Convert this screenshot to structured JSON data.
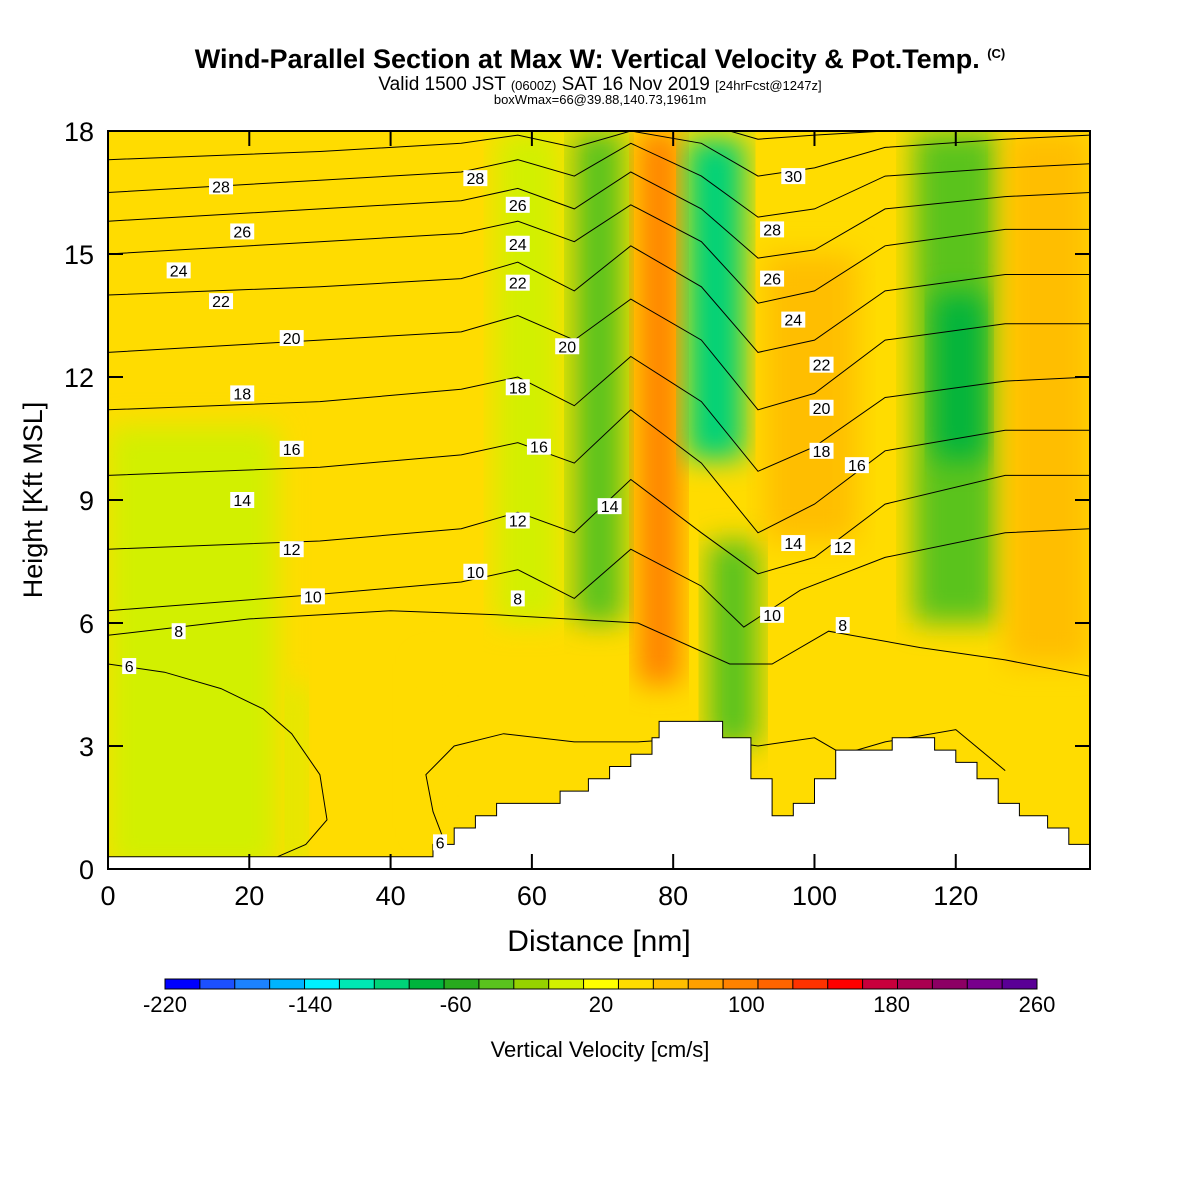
{
  "header": {
    "title": "Wind-Parallel Section at Max W: Vertical Velocity & Pot.Temp.",
    "copyright_mark": "(C)",
    "subtitle_a": "Valid 1500 JST",
    "subtitle_b": "(0600Z)",
    "subtitle_c": "SAT 16 Nov 2019",
    "subtitle_d": "[24hrFcst@1247z]",
    "subtitle_2": "boxWmax=66@39.88,140.73,1961m"
  },
  "chart_data": {
    "type": "heatmap",
    "xlabel": "Distance [nm]",
    "ylabel": "Height [Kft MSL]",
    "xlim": [
      0,
      139
    ],
    "ylim": [
      0,
      18
    ],
    "x_ticks": [
      0,
      20,
      40,
      60,
      80,
      100,
      120
    ],
    "y_ticks": [
      0,
      3,
      6,
      9,
      12,
      15,
      18
    ],
    "grid": false,
    "colorbar": {
      "label": "Vertical Velocity [cm/s]",
      "placement": "bottom",
      "tick_values": [
        -220,
        -140,
        -60,
        20,
        100,
        180,
        260
      ],
      "tick_labels": [
        "-220",
        "-140",
        "-60",
        "20",
        "100",
        "180",
        "260"
      ],
      "colors": [
        "#0000ff",
        "#1c50ff",
        "#1c82ff",
        "#00b4ff",
        "#00f0ff",
        "#00e8b4",
        "#00d278",
        "#00b43c",
        "#28aa1e",
        "#5ac31e",
        "#96d200",
        "#d2f000",
        "#ffff00",
        "#ffdc00",
        "#ffbe00",
        "#ffa000",
        "#ff8200",
        "#ff6400",
        "#ff3200",
        "#ff0000",
        "#c8003c",
        "#aa0050",
        "#8c0064",
        "#78008c",
        "#5a0096"
      ]
    },
    "color_fields": [
      {
        "value_cm_s": 30,
        "xmin": 0,
        "xmax": 139,
        "ymin": 0,
        "ymax": 18
      },
      {
        "value_cm_s": 5,
        "xmin": 0,
        "xmax": 24,
        "ymin": 0,
        "ymax": 10.8
      },
      {
        "value_cm_s": 5,
        "xmin": 25.5,
        "xmax": 28,
        "ymin": 0,
        "ymax": 4.5
      },
      {
        "value_cm_s": 45,
        "xmin": 45,
        "xmax": 72,
        "ymin": 1,
        "ymax": 5
      },
      {
        "value_cm_s": 10,
        "xmin": 55,
        "xmax": 64,
        "ymin": 6,
        "ymax": 18
      },
      {
        "value_cm_s": -30,
        "xmin": 66,
        "xmax": 73,
        "ymin": 6,
        "ymax": 18
      },
      {
        "value_cm_s": 90,
        "xmin": 75,
        "xmax": 81,
        "ymin": 4.5,
        "ymax": 18
      },
      {
        "value_cm_s": -100,
        "xmin": 82,
        "xmax": 90,
        "ymin": 10,
        "ymax": 17.8
      },
      {
        "value_cm_s": -40,
        "xmin": 85,
        "xmax": 92,
        "ymin": 3,
        "ymax": 8
      },
      {
        "value_cm_s": 60,
        "xmin": 93,
        "xmax": 106,
        "ymin": 8,
        "ymax": 15
      },
      {
        "value_cm_s": -40,
        "xmin": 114,
        "xmax": 126,
        "ymin": 6,
        "ymax": 18
      },
      {
        "value_cm_s": -80,
        "xmin": 117,
        "xmax": 124,
        "ymin": 10,
        "ymax": 14
      },
      {
        "value_cm_s": 55,
        "xmin": 127,
        "xmax": 139,
        "ymin": 5,
        "ymax": 18
      }
    ],
    "terrain_top_kft": [
      [
        0,
        0.3
      ],
      [
        46,
        0.3
      ],
      [
        46,
        0.6
      ],
      [
        49,
        0.6
      ],
      [
        49,
        1.0
      ],
      [
        52,
        1.0
      ],
      [
        52,
        1.3
      ],
      [
        55,
        1.3
      ],
      [
        55,
        1.6
      ],
      [
        64,
        1.6
      ],
      [
        64,
        1.9
      ],
      [
        68,
        1.9
      ],
      [
        68,
        2.2
      ],
      [
        71,
        2.2
      ],
      [
        71,
        2.5
      ],
      [
        74,
        2.5
      ],
      [
        74,
        2.8
      ],
      [
        77,
        2.8
      ],
      [
        77,
        3.2
      ],
      [
        78,
        3.2
      ],
      [
        78,
        3.6
      ],
      [
        87,
        3.6
      ],
      [
        87,
        3.2
      ],
      [
        91,
        3.2
      ],
      [
        91,
        2.2
      ],
      [
        94,
        2.2
      ],
      [
        94,
        1.3
      ],
      [
        97,
        1.3
      ],
      [
        97,
        1.6
      ],
      [
        100,
        1.6
      ],
      [
        100,
        2.2
      ],
      [
        103,
        2.2
      ],
      [
        103,
        2.9
      ],
      [
        111,
        2.9
      ],
      [
        111,
        3.2
      ],
      [
        117,
        3.2
      ],
      [
        117,
        2.9
      ],
      [
        120,
        2.9
      ],
      [
        120,
        2.6
      ],
      [
        123,
        2.6
      ],
      [
        123,
        2.2
      ],
      [
        126,
        2.2
      ],
      [
        126,
        1.6
      ],
      [
        129,
        1.6
      ],
      [
        129,
        1.3
      ],
      [
        133,
        1.3
      ],
      [
        133,
        1.0
      ],
      [
        136,
        1.0
      ],
      [
        136,
        0.6
      ],
      [
        139,
        0.6
      ]
    ],
    "series": [
      {
        "name": "6",
        "points": [
          [
            0,
            5.0
          ],
          [
            8,
            4.8
          ],
          [
            16,
            4.4
          ],
          [
            22,
            3.9
          ],
          [
            26,
            3.3
          ],
          [
            30,
            2.3
          ],
          [
            31,
            1.2
          ],
          [
            28,
            0.6
          ],
          [
            24,
            0.3
          ]
        ]
      },
      {
        "name": "6",
        "points": [
          [
            48,
            0.5
          ],
          [
            46,
            1.4
          ],
          [
            45,
            2.3
          ],
          [
            49,
            3.0
          ],
          [
            56,
            3.3
          ],
          [
            66,
            3.1
          ],
          [
            75,
            3.1
          ],
          [
            84,
            3.2
          ],
          [
            92,
            3.0
          ],
          [
            100,
            3.2
          ],
          [
            104,
            2.8
          ],
          [
            110,
            3.1
          ],
          [
            120,
            3.4
          ],
          [
            127,
            2.4
          ]
        ]
      },
      {
        "name": "8",
        "points": [
          [
            0,
            5.7
          ],
          [
            20,
            6.1
          ],
          [
            40,
            6.3
          ],
          [
            55,
            6.2
          ],
          [
            75,
            6.0
          ],
          [
            88,
            5.0
          ],
          [
            94,
            5.0
          ],
          [
            102,
            5.8
          ],
          [
            115,
            5.4
          ],
          [
            127,
            5.1
          ],
          [
            139,
            4.7
          ]
        ]
      },
      {
        "name": "10",
        "points": [
          [
            0,
            6.3
          ],
          [
            30,
            6.7
          ],
          [
            50,
            7.0
          ],
          [
            58,
            7.3
          ],
          [
            66,
            6.6
          ],
          [
            74,
            7.8
          ],
          [
            84,
            6.9
          ],
          [
            90,
            5.9
          ],
          [
            98,
            6.8
          ],
          [
            110,
            7.6
          ],
          [
            127,
            8.2
          ],
          [
            139,
            8.3
          ]
        ]
      },
      {
        "name": "12",
        "points": [
          [
            0,
            7.8
          ],
          [
            30,
            8.0
          ],
          [
            50,
            8.3
          ],
          [
            58,
            8.7
          ],
          [
            66,
            8.2
          ],
          [
            74,
            9.5
          ],
          [
            84,
            8.2
          ],
          [
            92,
            7.2
          ],
          [
            100,
            7.6
          ],
          [
            110,
            8.9
          ],
          [
            127,
            9.6
          ],
          [
            139,
            9.6
          ]
        ]
      },
      {
        "name": "14",
        "points": [
          [
            0,
            9.6
          ],
          [
            30,
            9.8
          ],
          [
            50,
            10.1
          ],
          [
            58,
            10.4
          ],
          [
            66,
            9.9
          ],
          [
            74,
            11.2
          ],
          [
            84,
            9.9
          ],
          [
            92,
            8.2
          ],
          [
            100,
            8.9
          ],
          [
            110,
            10.2
          ],
          [
            127,
            10.7
          ],
          [
            139,
            10.7
          ]
        ]
      },
      {
        "name": "16",
        "points": [
          [
            0,
            11.2
          ],
          [
            30,
            11.4
          ],
          [
            50,
            11.7
          ],
          [
            58,
            12.0
          ],
          [
            66,
            11.3
          ],
          [
            74,
            12.5
          ],
          [
            84,
            11.4
          ],
          [
            92,
            9.7
          ],
          [
            100,
            10.3
          ],
          [
            110,
            11.5
          ],
          [
            127,
            11.9
          ],
          [
            139,
            12.0
          ]
        ]
      },
      {
        "name": "18",
        "points": [
          [
            0,
            12.6
          ],
          [
            30,
            12.9
          ],
          [
            50,
            13.1
          ],
          [
            58,
            13.5
          ],
          [
            66,
            12.9
          ],
          [
            74,
            13.9
          ],
          [
            84,
            12.9
          ],
          [
            92,
            11.2
          ],
          [
            100,
            11.6
          ],
          [
            110,
            12.9
          ],
          [
            127,
            13.3
          ],
          [
            139,
            13.3
          ]
        ]
      },
      {
        "name": "20",
        "points": [
          [
            0,
            14.0
          ],
          [
            30,
            14.2
          ],
          [
            50,
            14.4
          ],
          [
            58,
            14.8
          ],
          [
            66,
            14.1
          ],
          [
            74,
            15.2
          ],
          [
            84,
            14.2
          ],
          [
            92,
            12.6
          ],
          [
            100,
            12.9
          ],
          [
            110,
            14.1
          ],
          [
            127,
            14.5
          ],
          [
            139,
            14.5
          ]
        ]
      },
      {
        "name": "22",
        "points": [
          [
            0,
            15.0
          ],
          [
            30,
            15.3
          ],
          [
            50,
            15.5
          ],
          [
            58,
            15.8
          ],
          [
            66,
            15.3
          ],
          [
            74,
            16.2
          ],
          [
            84,
            15.3
          ],
          [
            92,
            13.8
          ],
          [
            100,
            14.1
          ],
          [
            110,
            15.2
          ],
          [
            127,
            15.6
          ],
          [
            139,
            15.6
          ]
        ]
      },
      {
        "name": "24",
        "points": [
          [
            0,
            15.8
          ],
          [
            30,
            16.1
          ],
          [
            50,
            16.3
          ],
          [
            58,
            16.6
          ],
          [
            66,
            16.1
          ],
          [
            74,
            17.0
          ],
          [
            84,
            16.1
          ],
          [
            92,
            14.9
          ],
          [
            100,
            15.1
          ],
          [
            110,
            16.1
          ],
          [
            127,
            16.4
          ],
          [
            139,
            16.5
          ]
        ]
      },
      {
        "name": "26",
        "points": [
          [
            0,
            16.5
          ],
          [
            30,
            16.8
          ],
          [
            50,
            17.0
          ],
          [
            58,
            17.3
          ],
          [
            66,
            16.9
          ],
          [
            74,
            17.7
          ],
          [
            84,
            16.9
          ],
          [
            92,
            15.9
          ],
          [
            100,
            16.1
          ],
          [
            110,
            16.9
          ],
          [
            127,
            17.1
          ],
          [
            139,
            17.2
          ]
        ]
      },
      {
        "name": "28",
        "points": [
          [
            0,
            17.3
          ],
          [
            30,
            17.5
          ],
          [
            50,
            17.7
          ],
          [
            58,
            17.9
          ],
          [
            66,
            17.6
          ],
          [
            74,
            18.0
          ],
          [
            84,
            17.7
          ],
          [
            92,
            16.9
          ],
          [
            100,
            17.1
          ],
          [
            110,
            17.6
          ],
          [
            127,
            17.8
          ],
          [
            139,
            17.9
          ]
        ]
      },
      {
        "name": "30",
        "points": [
          [
            88,
            18.0
          ],
          [
            92,
            17.8
          ],
          [
            100,
            17.9
          ],
          [
            110,
            18.0
          ]
        ]
      }
    ],
    "contour_labels": [
      {
        "text": "6",
        "x": 3,
        "y": 4.95
      },
      {
        "text": "6",
        "x": 47,
        "y": 0.65
      },
      {
        "text": "8",
        "x": 10,
        "y": 5.8
      },
      {
        "text": "8",
        "x": 58,
        "y": 6.6
      },
      {
        "text": "8",
        "x": 104,
        "y": 5.95
      },
      {
        "text": "10",
        "x": 29,
        "y": 6.65
      },
      {
        "text": "10",
        "x": 52,
        "y": 7.25
      },
      {
        "text": "10",
        "x": 94,
        "y": 6.2
      },
      {
        "text": "12",
        "x": 26,
        "y": 7.8
      },
      {
        "text": "12",
        "x": 58,
        "y": 8.5
      },
      {
        "text": "12",
        "x": 104,
        "y": 7.85
      },
      {
        "text": "14",
        "x": 19,
        "y": 9.0
      },
      {
        "text": "14",
        "x": 71,
        "y": 8.85
      },
      {
        "text": "14",
        "x": 97,
        "y": 7.95
      },
      {
        "text": "16",
        "x": 26,
        "y": 10.25
      },
      {
        "text": "16",
        "x": 61,
        "y": 10.3
      },
      {
        "text": "16",
        "x": 106,
        "y": 9.85
      },
      {
        "text": "18",
        "x": 19,
        "y": 11.6
      },
      {
        "text": "18",
        "x": 58,
        "y": 11.75
      },
      {
        "text": "18",
        "x": 101,
        "y": 10.2
      },
      {
        "text": "20",
        "x": 26,
        "y": 12.95
      },
      {
        "text": "20",
        "x": 65,
        "y": 12.75
      },
      {
        "text": "20",
        "x": 101,
        "y": 11.25
      },
      {
        "text": "22",
        "x": 16,
        "y": 13.85
      },
      {
        "text": "22",
        "x": 58,
        "y": 14.3
      },
      {
        "text": "22",
        "x": 101,
        "y": 12.3
      },
      {
        "text": "24",
        "x": 10,
        "y": 14.6
      },
      {
        "text": "24",
        "x": 58,
        "y": 15.25
      },
      {
        "text": "24",
        "x": 97,
        "y": 13.4
      },
      {
        "text": "26",
        "x": 19,
        "y": 15.55
      },
      {
        "text": "26",
        "x": 58,
        "y": 16.2
      },
      {
        "text": "26",
        "x": 94,
        "y": 14.4
      },
      {
        "text": "28",
        "x": 16,
        "y": 16.65
      },
      {
        "text": "28",
        "x": 52,
        "y": 16.85
      },
      {
        "text": "28",
        "x": 94,
        "y": 15.6
      },
      {
        "text": "30",
        "x": 97,
        "y": 16.9
      }
    ]
  }
}
